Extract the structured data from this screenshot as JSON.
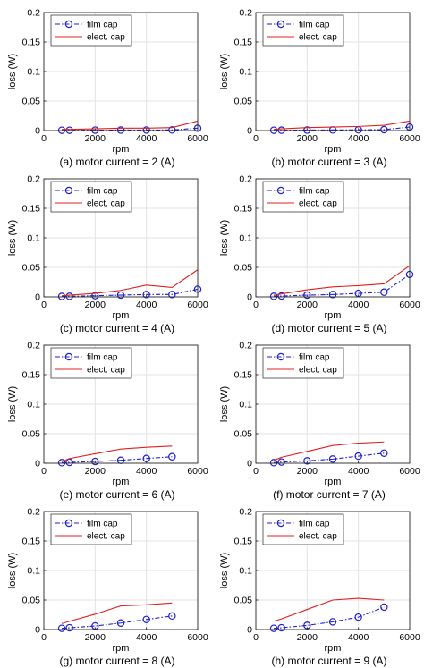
{
  "chart_data": [
    {
      "type": "line",
      "title": "",
      "caption": "(a) motor current = 2 (A)",
      "xlabel": "rpm",
      "ylabel": "loss (W)",
      "xlim": [
        0,
        6000
      ],
      "ylim": [
        0,
        0.2
      ],
      "xticks": [
        "0",
        "2000",
        "4000",
        "6000"
      ],
      "yticks": [
        "0",
        "0.05",
        "0.1",
        "0.15",
        "0.2"
      ],
      "grid": true,
      "legend": "top-left",
      "series": [
        {
          "name": "film cap",
          "style": "dashdot-circle",
          "color": "#1f1fd0",
          "x": [
            700,
            1000,
            2000,
            3000,
            4000,
            5000,
            6000
          ],
          "y": [
            0.0005,
            0.0005,
            0.0007,
            0.0008,
            0.0009,
            0.001,
            0.004
          ]
        },
        {
          "name": "elect. cap",
          "style": "solid",
          "color": "#e02020",
          "x": [
            700,
            1000,
            2000,
            3000,
            4000,
            5000,
            6000
          ],
          "y": [
            0.002,
            0.002,
            0.003,
            0.004,
            0.004,
            0.005,
            0.016
          ]
        }
      ]
    },
    {
      "type": "line",
      "title": "",
      "caption": "(b) motor current = 3 (A)",
      "xlabel": "rpm",
      "ylabel": "loss (W)",
      "xlim": [
        0,
        6000
      ],
      "ylim": [
        0,
        0.2
      ],
      "xticks": [
        "0",
        "2000",
        "4000",
        "6000"
      ],
      "yticks": [
        "0",
        "0.05",
        "0.1",
        "0.15",
        "0.2"
      ],
      "grid": true,
      "legend": "top-left",
      "series": [
        {
          "name": "film cap",
          "style": "dashdot-circle",
          "color": "#1f1fd0",
          "x": [
            700,
            1000,
            2000,
            3000,
            4000,
            5000,
            6000
          ],
          "y": [
            0.0005,
            0.0006,
            0.0008,
            0.001,
            0.0012,
            0.0015,
            0.006
          ]
        },
        {
          "name": "elect. cap",
          "style": "solid",
          "color": "#e02020",
          "x": [
            700,
            1000,
            2000,
            3000,
            4000,
            5000,
            6000
          ],
          "y": [
            0.002,
            0.003,
            0.005,
            0.006,
            0.007,
            0.009,
            0.016
          ]
        }
      ]
    },
    {
      "type": "line",
      "title": "",
      "caption": "(c) motor current = 4 (A)",
      "xlabel": "rpm",
      "ylabel": "loss (W)",
      "xlim": [
        0,
        6000
      ],
      "ylim": [
        0,
        0.2
      ],
      "xticks": [
        "0",
        "2000",
        "4000",
        "6000"
      ],
      "yticks": [
        "0",
        "0.05",
        "0.1",
        "0.15",
        "0.2"
      ],
      "grid": true,
      "legend": "top-left",
      "series": [
        {
          "name": "film cap",
          "style": "dashdot-circle",
          "color": "#1f1fd0",
          "x": [
            700,
            1000,
            2000,
            3000,
            4000,
            5000,
            6000
          ],
          "y": [
            0.0008,
            0.001,
            0.002,
            0.003,
            0.004,
            0.004,
            0.013
          ]
        },
        {
          "name": "elect. cap",
          "style": "solid",
          "color": "#e02020",
          "x": [
            700,
            1000,
            2000,
            3000,
            4000,
            5000,
            6000
          ],
          "y": [
            0.002,
            0.003,
            0.006,
            0.011,
            0.02,
            0.016,
            0.046
          ]
        }
      ]
    },
    {
      "type": "line",
      "title": "",
      "caption": "(d) motor current = 5 (A)",
      "xlabel": "rpm",
      "ylabel": "loss (W)",
      "xlim": [
        0,
        6000
      ],
      "ylim": [
        0,
        0.2
      ],
      "xticks": [
        "0",
        "2000",
        "4000",
        "6000"
      ],
      "yticks": [
        "0",
        "0.05",
        "0.1",
        "0.15",
        "0.2"
      ],
      "grid": true,
      "legend": "top-left",
      "series": [
        {
          "name": "film cap",
          "style": "dashdot-circle",
          "color": "#1f1fd0",
          "x": [
            700,
            1000,
            2000,
            3000,
            4000,
            5000,
            6000
          ],
          "y": [
            0.001,
            0.0015,
            0.003,
            0.004,
            0.006,
            0.008,
            0.038
          ]
        },
        {
          "name": "elect. cap",
          "style": "solid",
          "color": "#e02020",
          "x": [
            700,
            1000,
            2000,
            3000,
            4000,
            5000,
            6000
          ],
          "y": [
            0.003,
            0.005,
            0.012,
            0.017,
            0.019,
            0.022,
            0.053
          ]
        }
      ]
    },
    {
      "type": "line",
      "title": "",
      "caption": "(e) motor current = 6 (A)",
      "xlabel": "rpm",
      "ylabel": "loss (W)",
      "xlim": [
        0,
        6000
      ],
      "ylim": [
        0,
        0.2
      ],
      "xticks": [
        "0",
        "2000",
        "4000",
        "6000"
      ],
      "yticks": [
        "0",
        "0.05",
        "0.1",
        "0.15",
        "0.2"
      ],
      "grid": true,
      "legend": "top-left",
      "series": [
        {
          "name": "film cap",
          "style": "dashdot-circle",
          "color": "#1f1fd0",
          "x": [
            700,
            1000,
            2000,
            3000,
            4000,
            5000
          ],
          "y": [
            0.001,
            0.0015,
            0.003,
            0.005,
            0.008,
            0.011
          ]
        },
        {
          "name": "elect. cap",
          "style": "solid",
          "color": "#e02020",
          "x": [
            700,
            1000,
            2000,
            3000,
            4000,
            5000
          ],
          "y": [
            0.003,
            0.008,
            0.016,
            0.024,
            0.027,
            0.029
          ]
        }
      ]
    },
    {
      "type": "line",
      "title": "",
      "caption": "(f) motor current = 7 (A)",
      "xlabel": "rpm",
      "ylabel": "loss (W)",
      "xlim": [
        0,
        6000
      ],
      "ylim": [
        0,
        0.2
      ],
      "xticks": [
        "0",
        "2000",
        "4000",
        "6000"
      ],
      "yticks": [
        "0",
        "0.05",
        "0.1",
        "0.15",
        "0.2"
      ],
      "grid": true,
      "legend": "top-left",
      "series": [
        {
          "name": "film cap",
          "style": "dashdot-circle",
          "color": "#1f1fd0",
          "x": [
            700,
            1000,
            2000,
            3000,
            4000,
            5000
          ],
          "y": [
            0.001,
            0.002,
            0.004,
            0.007,
            0.012,
            0.017
          ]
        },
        {
          "name": "elect. cap",
          "style": "solid",
          "color": "#e02020",
          "x": [
            700,
            1000,
            2000,
            3000,
            4000,
            5000
          ],
          "y": [
            0.005,
            0.01,
            0.02,
            0.03,
            0.034,
            0.036
          ]
        }
      ]
    },
    {
      "type": "line",
      "title": "",
      "caption": "(g) motor current = 8 (A)",
      "xlabel": "rpm",
      "ylabel": "loss (W)",
      "xlim": [
        0,
        6000
      ],
      "ylim": [
        0,
        0.2
      ],
      "xticks": [
        "0",
        "2000",
        "4000",
        "6000"
      ],
      "yticks": [
        "0",
        "0.05",
        "0.1",
        "0.15",
        "0.2"
      ],
      "grid": true,
      "legend": "top-left",
      "series": [
        {
          "name": "film cap",
          "style": "dashdot-circle",
          "color": "#1f1fd0",
          "x": [
            700,
            1000,
            2000,
            3000,
            4000,
            5000
          ],
          "y": [
            0.002,
            0.003,
            0.006,
            0.011,
            0.017,
            0.023
          ]
        },
        {
          "name": "elect. cap",
          "style": "solid",
          "color": "#e02020",
          "x": [
            700,
            1000,
            2000,
            3000,
            4000,
            5000
          ],
          "y": [
            0.01,
            0.014,
            0.026,
            0.04,
            0.042,
            0.045
          ]
        }
      ]
    },
    {
      "type": "line",
      "title": "",
      "caption": "(h) motor current = 9 (A)",
      "xlabel": "rpm",
      "ylabel": "loss (W)",
      "xlim": [
        0,
        6000
      ],
      "ylim": [
        0,
        0.2
      ],
      "xticks": [
        "0",
        "2000",
        "4000",
        "6000"
      ],
      "yticks": [
        "0",
        "0.05",
        "0.1",
        "0.15",
        "0.2"
      ],
      "grid": true,
      "legend": "top-left",
      "series": [
        {
          "name": "film cap",
          "style": "dashdot-circle",
          "color": "#1f1fd0",
          "x": [
            700,
            1000,
            2000,
            3000,
            4000,
            5000
          ],
          "y": [
            0.002,
            0.003,
            0.007,
            0.013,
            0.021,
            0.038
          ]
        },
        {
          "name": "elect. cap",
          "style": "solid",
          "color": "#e02020",
          "x": [
            700,
            1000,
            2000,
            3000,
            4000,
            5000
          ],
          "y": [
            0.014,
            0.018,
            0.034,
            0.05,
            0.053,
            0.05
          ]
        }
      ]
    }
  ]
}
